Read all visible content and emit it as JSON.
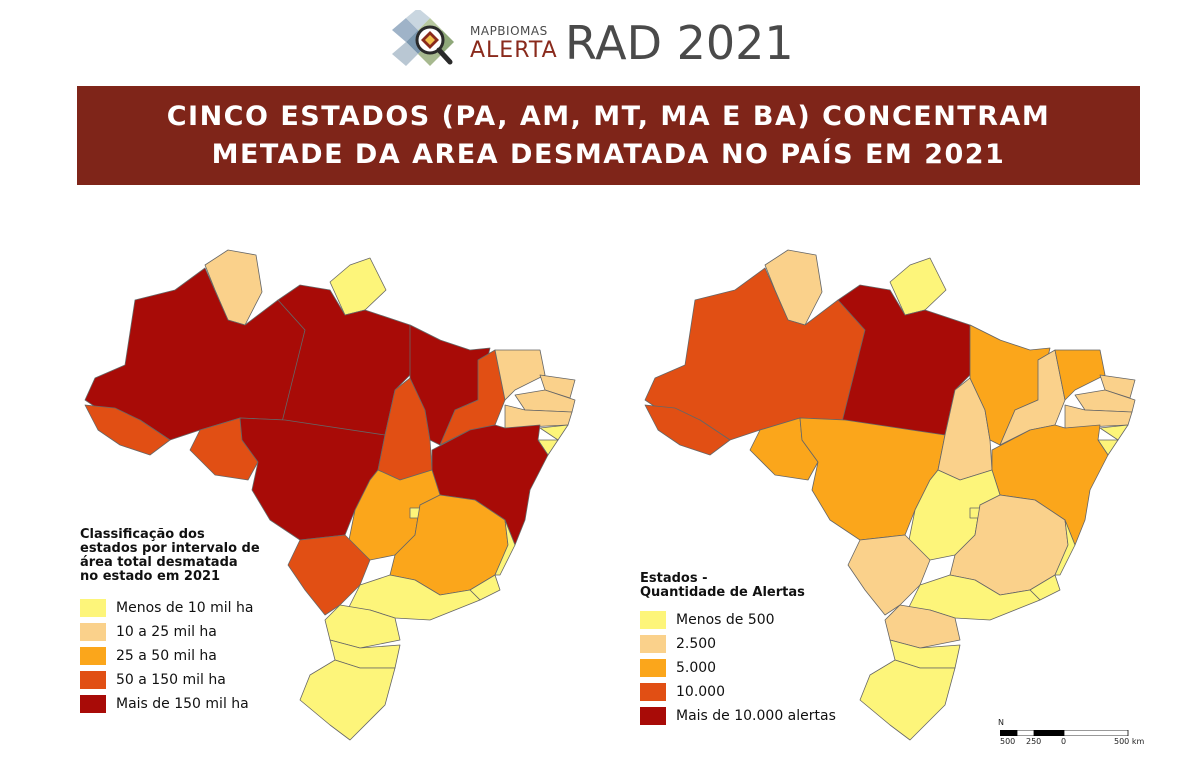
{
  "header": {
    "brand_top": "MAPBIOMAS",
    "brand_bottom": "ALERTA",
    "title": "RAD 2021"
  },
  "banner": {
    "line1": "CINCO ESTADOS (PA, AM, MT, MA E BA) CONCENTRAM",
    "line2": "METADE DA AREA DESMATADA NO PAÍS EM 2021"
  },
  "colors": {
    "c1": "#fdf57a",
    "c2": "#fad18b",
    "c3": "#fba61b",
    "c4": "#e14f14",
    "c5": "#a80b07",
    "banner": "#7f2519"
  },
  "left_map": {
    "legend_title": [
      "Classificação dos",
      "estados por intervalo de",
      "área total desmatada",
      "no estado em 2021"
    ],
    "legend": [
      {
        "label": "Menos de 10 mil ha"
      },
      {
        "label": "10 a 25 mil ha"
      },
      {
        "label": "25 a 50 mil ha"
      },
      {
        "label": "50 a 150 mil ha"
      },
      {
        "label": "Mais de 150 mil ha"
      }
    ]
  },
  "right_map": {
    "legend_title": [
      "Estados -",
      "Quantidade de Alertas"
    ],
    "legend": [
      {
        "label": "Menos de 500"
      },
      {
        "label": "2.500"
      },
      {
        "label": "5.000"
      },
      {
        "label": "10.000"
      },
      {
        "label": "Mais de 10.000 alertas"
      }
    ]
  },
  "scale": {
    "north": "N",
    "ticks": [
      "500",
      "250",
      "0",
      "500 km"
    ]
  }
}
